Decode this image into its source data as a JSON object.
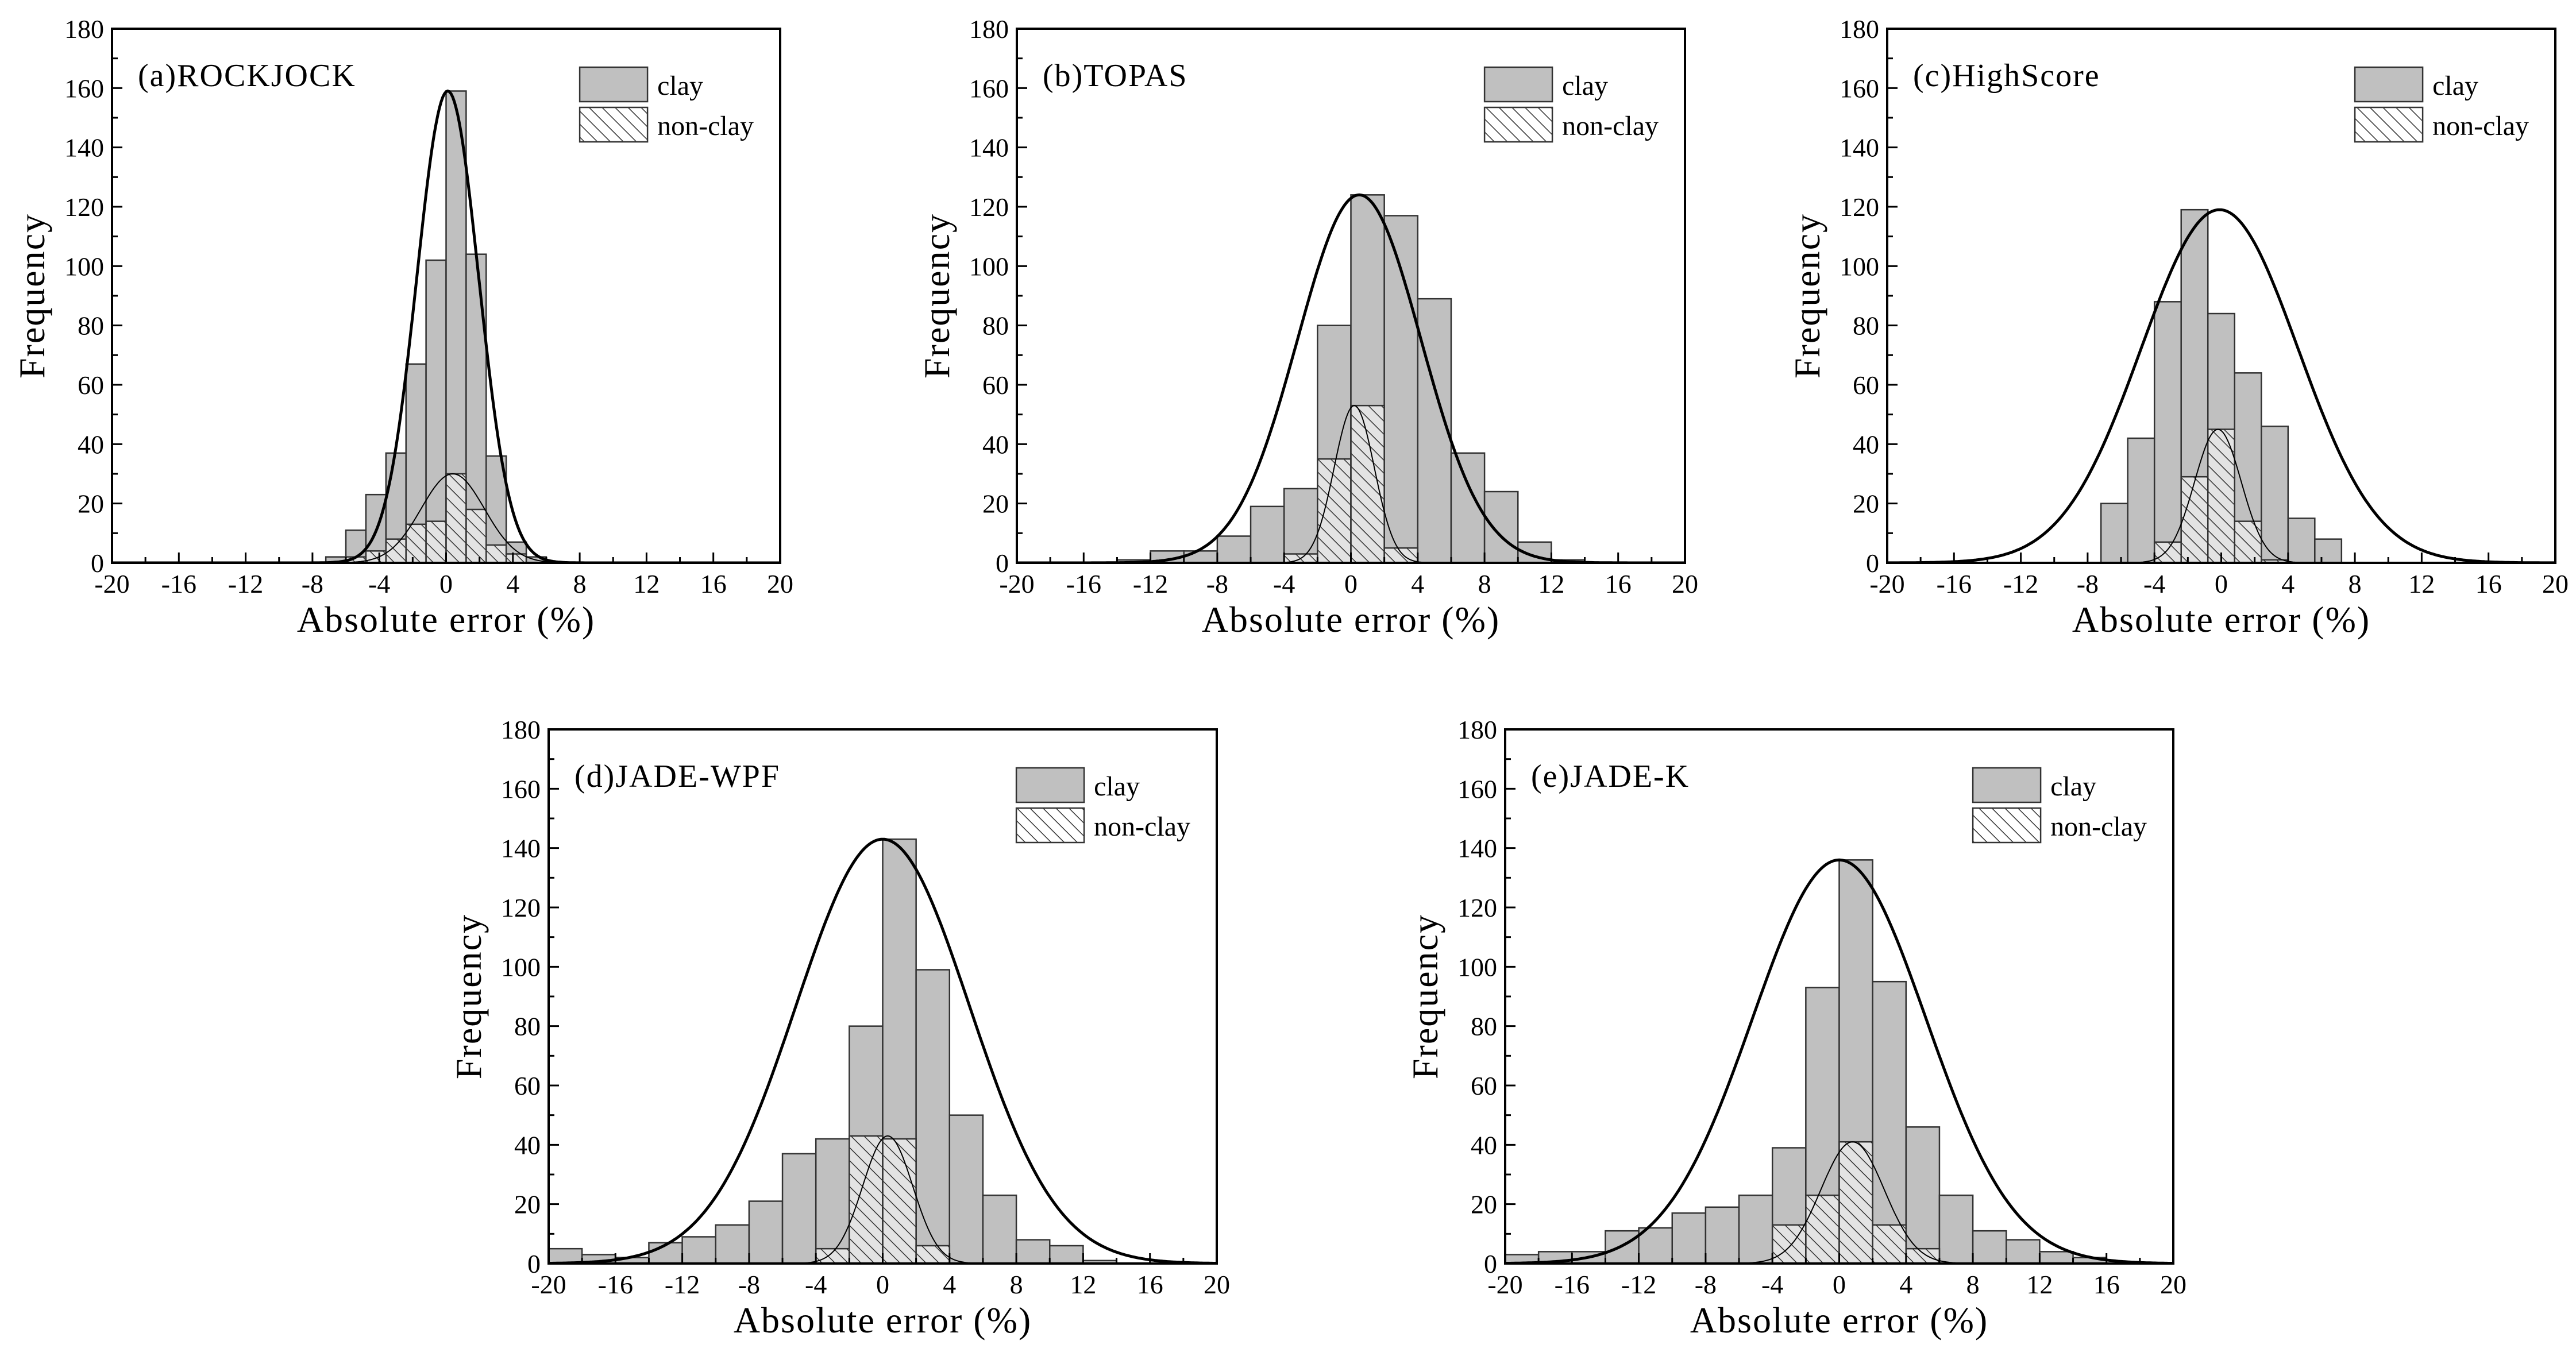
{
  "chart_data": [
    {
      "type": "bar",
      "title": "(a)ROCKJOCK",
      "xlabel": "Absolute error (%)",
      "ylabel": "Frequency",
      "xlim": [
        -20,
        20
      ],
      "ylim": [
        0,
        180
      ],
      "xticks": [
        -20,
        -16,
        -12,
        -8,
        -4,
        0,
        4,
        8,
        12,
        16,
        20
      ],
      "yticks": [
        0,
        20,
        40,
        60,
        80,
        100,
        120,
        140,
        160,
        180
      ],
      "bin_width": 1.2,
      "legend": [
        "clay",
        "non-clay"
      ],
      "legend_position": "top-right",
      "series": [
        {
          "name": "clay",
          "bins": [
            {
              "x": -7.2,
              "y": 2
            },
            {
              "x": -6.0,
              "y": 11
            },
            {
              "x": -4.8,
              "y": 23
            },
            {
              "x": -3.6,
              "y": 37
            },
            {
              "x": -2.4,
              "y": 67
            },
            {
              "x": -1.2,
              "y": 102
            },
            {
              "x": 0.0,
              "y": 159
            },
            {
              "x": 1.2,
              "y": 104
            },
            {
              "x": 2.4,
              "y": 36
            },
            {
              "x": 3.6,
              "y": 7
            },
            {
              "x": 4.8,
              "y": 2
            }
          ]
        },
        {
          "name": "non-clay",
          "bins": [
            {
              "x": -6.0,
              "y": 2
            },
            {
              "x": -4.8,
              "y": 4
            },
            {
              "x": -3.6,
              "y": 8
            },
            {
              "x": -2.4,
              "y": 13
            },
            {
              "x": -1.2,
              "y": 14
            },
            {
              "x": 0.0,
              "y": 30
            },
            {
              "x": 1.2,
              "y": 18
            },
            {
              "x": 2.4,
              "y": 6
            },
            {
              "x": 3.6,
              "y": 3
            }
          ]
        }
      ],
      "fits": [
        {
          "series": "clay",
          "mean": 0.1,
          "sd": 1.85,
          "peak": 159
        },
        {
          "series": "non-clay",
          "mean": 0.4,
          "sd": 1.9,
          "peak": 30
        }
      ]
    },
    {
      "type": "bar",
      "title": "(b)TOPAS",
      "xlabel": "Absolute error (%)",
      "ylabel": "Frequency",
      "xlim": [
        -20,
        20
      ],
      "ylim": [
        0,
        180
      ],
      "xticks": [
        -20,
        -16,
        -12,
        -8,
        -4,
        0,
        4,
        8,
        12,
        16,
        20
      ],
      "yticks": [
        0,
        20,
        40,
        60,
        80,
        100,
        120,
        140,
        160,
        180
      ],
      "bin_width": 2.0,
      "legend": [
        "clay",
        "non-clay"
      ],
      "legend_position": "top-right",
      "series": [
        {
          "name": "clay",
          "bins": [
            {
              "x": -14,
              "y": 1
            },
            {
              "x": -12,
              "y": 4
            },
            {
              "x": -10,
              "y": 4
            },
            {
              "x": -8,
              "y": 9
            },
            {
              "x": -6,
              "y": 19
            },
            {
              "x": -4,
              "y": 25
            },
            {
              "x": -2,
              "y": 80
            },
            {
              "x": 0,
              "y": 124
            },
            {
              "x": 2,
              "y": 117
            },
            {
              "x": 4,
              "y": 89
            },
            {
              "x": 6,
              "y": 37
            },
            {
              "x": 8,
              "y": 24
            },
            {
              "x": 10,
              "y": 7
            },
            {
              "x": 12,
              "y": 1
            }
          ]
        },
        {
          "name": "non-clay",
          "bins": [
            {
              "x": -4,
              "y": 3
            },
            {
              "x": -2,
              "y": 35
            },
            {
              "x": 0,
              "y": 53
            },
            {
              "x": 2,
              "y": 5
            }
          ]
        }
      ],
      "fits": [
        {
          "series": "clay",
          "mean": 0.5,
          "sd": 3.7,
          "peak": 124
        },
        {
          "series": "non-clay",
          "mean": 0.2,
          "sd": 1.2,
          "peak": 53
        }
      ]
    },
    {
      "type": "bar",
      "title": "(c)HighScore",
      "xlabel": "Absolute error (%)",
      "ylabel": "Frequency",
      "xlim": [
        -20,
        20
      ],
      "ylim": [
        0,
        180
      ],
      "xticks": [
        -20,
        -16,
        -12,
        -8,
        -4,
        0,
        4,
        8,
        12,
        16,
        20
      ],
      "yticks": [
        0,
        20,
        40,
        60,
        80,
        100,
        120,
        140,
        160,
        180
      ],
      "bin_width": 1.6,
      "legend": [
        "clay",
        "non-clay"
      ],
      "legend_position": "top-right",
      "series": [
        {
          "name": "clay",
          "bins": [
            {
              "x": -7.2,
              "y": 20
            },
            {
              "x": -5.6,
              "y": 42
            },
            {
              "x": -4.0,
              "y": 88
            },
            {
              "x": -2.4,
              "y": 119
            },
            {
              "x": -0.8,
              "y": 84
            },
            {
              "x": 0.8,
              "y": 64
            },
            {
              "x": 2.4,
              "y": 46
            },
            {
              "x": 4.0,
              "y": 15
            },
            {
              "x": 5.6,
              "y": 8
            }
          ]
        },
        {
          "name": "non-clay",
          "bins": [
            {
              "x": -4.0,
              "y": 7
            },
            {
              "x": -2.4,
              "y": 29
            },
            {
              "x": -0.8,
              "y": 45
            },
            {
              "x": 0.8,
              "y": 14
            },
            {
              "x": 2.4,
              "y": 1
            }
          ]
        }
      ],
      "fits": [
        {
          "series": "clay",
          "mean": -0.1,
          "sd": 4.7,
          "peak": 119
        },
        {
          "series": "non-clay",
          "mean": -0.2,
          "sd": 1.4,
          "peak": 45
        }
      ]
    },
    {
      "type": "bar",
      "title": "(d)JADE-WPF",
      "xlabel": "Absolute error (%)",
      "ylabel": "Frequency",
      "xlim": [
        -20,
        20
      ],
      "ylim": [
        0,
        180
      ],
      "xticks": [
        -20,
        -16,
        -12,
        -8,
        -4,
        0,
        4,
        8,
        12,
        16,
        20
      ],
      "yticks": [
        0,
        20,
        40,
        60,
        80,
        100,
        120,
        140,
        160,
        180
      ],
      "bin_width": 2.0,
      "legend": [
        "clay",
        "non-clay"
      ],
      "legend_position": "top-right",
      "series": [
        {
          "name": "clay",
          "bins": [
            {
              "x": -20,
              "y": 5
            },
            {
              "x": -18,
              "y": 3
            },
            {
              "x": -16,
              "y": 2
            },
            {
              "x": -14,
              "y": 7
            },
            {
              "x": -12,
              "y": 9
            },
            {
              "x": -10,
              "y": 13
            },
            {
              "x": -8,
              "y": 21
            },
            {
              "x": -6,
              "y": 37
            },
            {
              "x": -4,
              "y": 42
            },
            {
              "x": -2,
              "y": 80
            },
            {
              "x": 0,
              "y": 143
            },
            {
              "x": 2,
              "y": 99
            },
            {
              "x": 4,
              "y": 50
            },
            {
              "x": 6,
              "y": 23
            },
            {
              "x": 8,
              "y": 8
            },
            {
              "x": 10,
              "y": 6
            },
            {
              "x": 12,
              "y": 1
            }
          ]
        },
        {
          "name": "non-clay",
          "bins": [
            {
              "x": -4,
              "y": 5
            },
            {
              "x": -2,
              "y": 43
            },
            {
              "x": 0,
              "y": 42
            },
            {
              "x": 2,
              "y": 6
            }
          ]
        }
      ],
      "fits": [
        {
          "series": "clay",
          "mean": 0.0,
          "sd": 5.2,
          "peak": 143
        },
        {
          "series": "non-clay",
          "mean": 0.3,
          "sd": 1.5,
          "peak": 43
        }
      ]
    },
    {
      "type": "bar",
      "title": "(e)JADE-K",
      "xlabel": "Absolute error (%)",
      "ylabel": "Frequency",
      "xlim": [
        -20,
        20
      ],
      "ylim": [
        0,
        180
      ],
      "xticks": [
        -20,
        -16,
        -12,
        -8,
        -4,
        0,
        4,
        8,
        12,
        16,
        20
      ],
      "yticks": [
        0,
        20,
        40,
        60,
        80,
        100,
        120,
        140,
        160,
        180
      ],
      "bin_width": 2.0,
      "legend": [
        "clay",
        "non-clay"
      ],
      "legend_position": "top-right",
      "series": [
        {
          "name": "clay",
          "bins": [
            {
              "x": -20,
              "y": 3
            },
            {
              "x": -18,
              "y": 4
            },
            {
              "x": -16,
              "y": 4
            },
            {
              "x": -14,
              "y": 11
            },
            {
              "x": -12,
              "y": 12
            },
            {
              "x": -10,
              "y": 17
            },
            {
              "x": -8,
              "y": 19
            },
            {
              "x": -6,
              "y": 23
            },
            {
              "x": -4,
              "y": 39
            },
            {
              "x": -2,
              "y": 93
            },
            {
              "x": 0,
              "y": 136
            },
            {
              "x": 2,
              "y": 95
            },
            {
              "x": 4,
              "y": 46
            },
            {
              "x": 6,
              "y": 23
            },
            {
              "x": 8,
              "y": 11
            },
            {
              "x": 10,
              "y": 8
            },
            {
              "x": 12,
              "y": 4
            },
            {
              "x": 14,
              "y": 2
            }
          ]
        },
        {
          "name": "non-clay",
          "bins": [
            {
              "x": -4,
              "y": 13
            },
            {
              "x": -2,
              "y": 23
            },
            {
              "x": 0,
              "y": 41
            },
            {
              "x": 2,
              "y": 13
            },
            {
              "x": 4,
              "y": 5
            }
          ]
        }
      ],
      "fits": [
        {
          "series": "clay",
          "mean": 0.0,
          "sd": 5.2,
          "peak": 136
        },
        {
          "series": "non-clay",
          "mean": 0.8,
          "sd": 1.9,
          "peak": 41
        }
      ]
    }
  ],
  "colors": {
    "clay_fill": "#c0c0c0",
    "non_clay_hatch": "#333333",
    "bar_outline": "#333333",
    "curve": "#000000",
    "axis": "#000000"
  }
}
